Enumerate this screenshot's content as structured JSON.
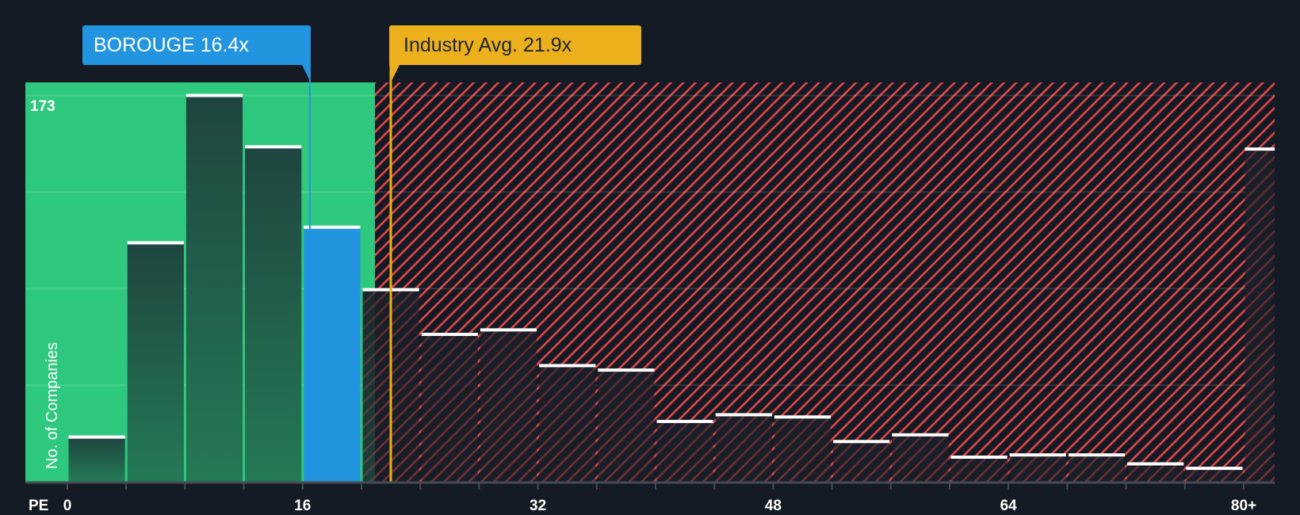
{
  "callouts": {
    "company": {
      "label": "BOROUGE 16.4x",
      "value": 16.4,
      "color": "#2394df"
    },
    "industry": {
      "label": "Industry Avg. 21.9x",
      "value": 21.9,
      "color": "#ebb01b"
    }
  },
  "axis": {
    "x_prefix": "PE",
    "y_title": "No. of Companies",
    "y_max_label": "173"
  },
  "colors": {
    "background": "#151b24",
    "undervalued_zone": "#2ec97e",
    "overvalued_hatch": "#e0464a",
    "bar_dark": "#1f4a40",
    "bar_highlight": "#2394df",
    "bar_top": "#ffffff"
  },
  "chart_data": {
    "type": "bar",
    "title": "",
    "xlabel": "PE",
    "ylabel": "No. of Companies",
    "x_ticks": [
      "0",
      "16",
      "32",
      "48",
      "64",
      "80+"
    ],
    "categories": [
      "0-4",
      "4-8",
      "8-12",
      "12-16",
      "16-20",
      "20-24",
      "24-28",
      "28-32",
      "32-36",
      "36-40",
      "40-44",
      "44-48",
      "48-52",
      "52-56",
      "56-60",
      "60-64",
      "64-68",
      "68-72",
      "72-76",
      "76-80",
      "80+"
    ],
    "values": [
      20,
      107,
      173,
      150,
      114,
      86,
      66,
      68,
      52,
      50,
      27,
      30,
      29,
      18,
      21,
      11,
      12,
      12,
      8,
      6,
      149
    ],
    "highlight_index": 4,
    "company_pe": 16.4,
    "industry_avg_pe": 21.9,
    "ylim": [
      0,
      173
    ],
    "grid": true,
    "legend": "none"
  }
}
